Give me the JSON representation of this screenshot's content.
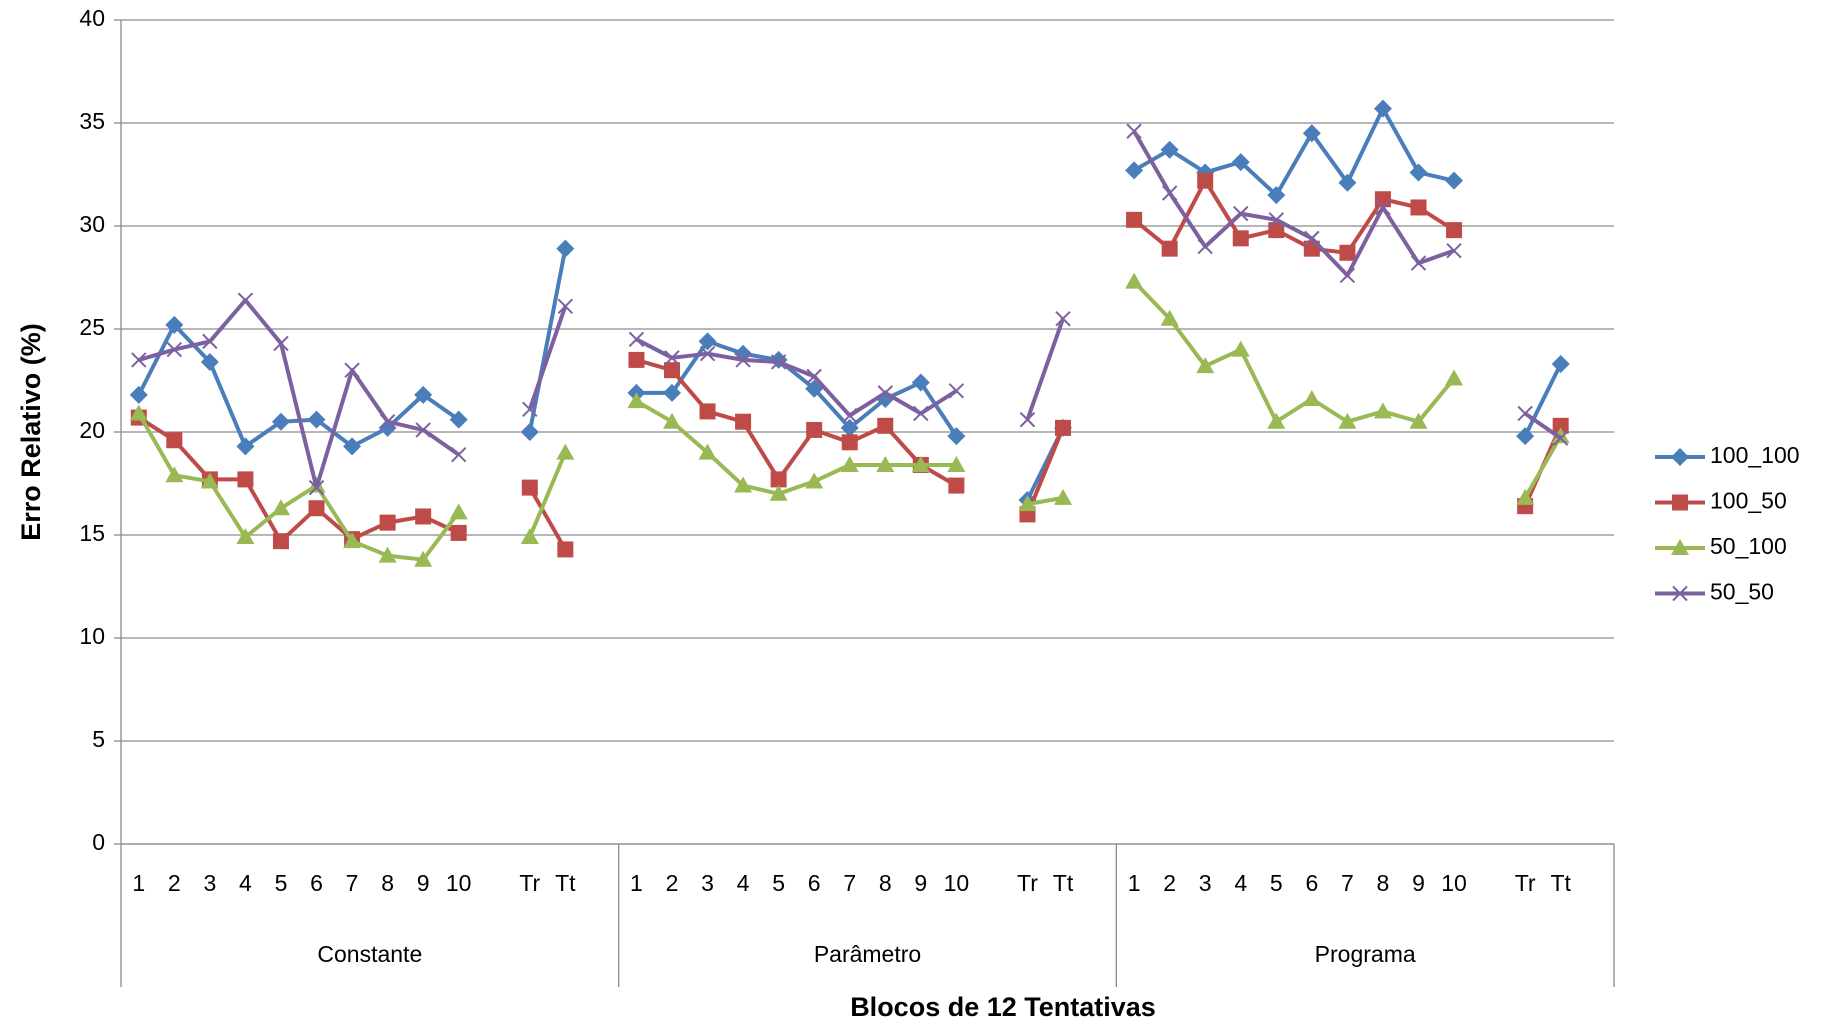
{
  "chart_data": {
    "type": "line",
    "y_label": "Erro Relativo (%)",
    "x_label": "Blocos de 12 Tentativas",
    "groups": [
      "Constante",
      "Parâmetro",
      "Programa"
    ],
    "categories": [
      "1",
      "2",
      "3",
      "4",
      "5",
      "6",
      "7",
      "8",
      "9",
      "10",
      null,
      "Tr",
      "Tt",
      null,
      "1",
      "2",
      "3",
      "4",
      "5",
      "6",
      "7",
      "8",
      "9",
      "10",
      null,
      "Tr",
      "Tt",
      null,
      "1",
      "2",
      "3",
      "4",
      "5",
      "6",
      "7",
      "8",
      "9",
      "10",
      null,
      "Tr",
      "Tt",
      null
    ],
    "ylim": [
      0,
      40
    ],
    "yticks": [
      0,
      5,
      10,
      15,
      20,
      25,
      30,
      35,
      40
    ],
    "grid": true,
    "legend": "right",
    "series": [
      {
        "name": "100_100",
        "color": "#4a7ebb",
        "marker": "diamond",
        "values": [
          21.8,
          25.2,
          23.4,
          19.3,
          20.5,
          20.6,
          19.3,
          20.2,
          21.8,
          20.6,
          null,
          20.0,
          28.9,
          null,
          21.9,
          21.9,
          24.4,
          23.8,
          23.5,
          22.1,
          20.2,
          21.6,
          22.4,
          19.8,
          null,
          16.7,
          20.2,
          null,
          32.7,
          33.7,
          32.6,
          33.1,
          31.5,
          34.5,
          32.1,
          35.7,
          32.6,
          32.2,
          null,
          19.8,
          23.3,
          null
        ]
      },
      {
        "name": "100_50",
        "color": "#be4b48",
        "marker": "square",
        "values": [
          20.7,
          19.6,
          17.7,
          17.7,
          14.7,
          16.3,
          14.8,
          15.6,
          15.9,
          15.1,
          null,
          17.3,
          14.3,
          null,
          23.5,
          23.0,
          21.0,
          20.5,
          17.7,
          20.1,
          19.5,
          20.3,
          18.4,
          17.4,
          null,
          16.0,
          20.2,
          null,
          30.3,
          28.9,
          32.2,
          29.4,
          29.8,
          28.9,
          28.7,
          31.3,
          30.9,
          29.8,
          null,
          16.4,
          20.3,
          null
        ]
      },
      {
        "name": "50_100",
        "color": "#98b954",
        "marker": "triangle",
        "values": [
          20.9,
          17.9,
          17.6,
          14.9,
          16.3,
          17.4,
          14.7,
          14.0,
          13.8,
          16.1,
          null,
          14.9,
          19.0,
          null,
          21.5,
          20.5,
          19.0,
          17.4,
          17.0,
          17.6,
          18.4,
          18.4,
          18.4,
          18.4,
          null,
          16.5,
          16.8,
          null,
          27.3,
          25.5,
          23.2,
          24.0,
          20.5,
          21.6,
          20.5,
          21.0,
          20.5,
          22.6,
          null,
          16.8,
          19.8,
          null
        ]
      },
      {
        "name": "50_50",
        "color": "#7d60a0",
        "marker": "x",
        "values": [
          23.5,
          24.0,
          24.4,
          26.4,
          24.3,
          17.3,
          23.0,
          20.5,
          20.1,
          18.9,
          null,
          21.1,
          26.1,
          null,
          24.5,
          23.6,
          23.8,
          23.5,
          23.4,
          22.7,
          20.8,
          21.9,
          20.9,
          22.0,
          null,
          20.6,
          25.5,
          null,
          34.6,
          31.6,
          29.0,
          30.6,
          30.3,
          29.4,
          27.6,
          30.9,
          28.2,
          28.8,
          null,
          20.9,
          19.7,
          null
        ]
      }
    ]
  }
}
